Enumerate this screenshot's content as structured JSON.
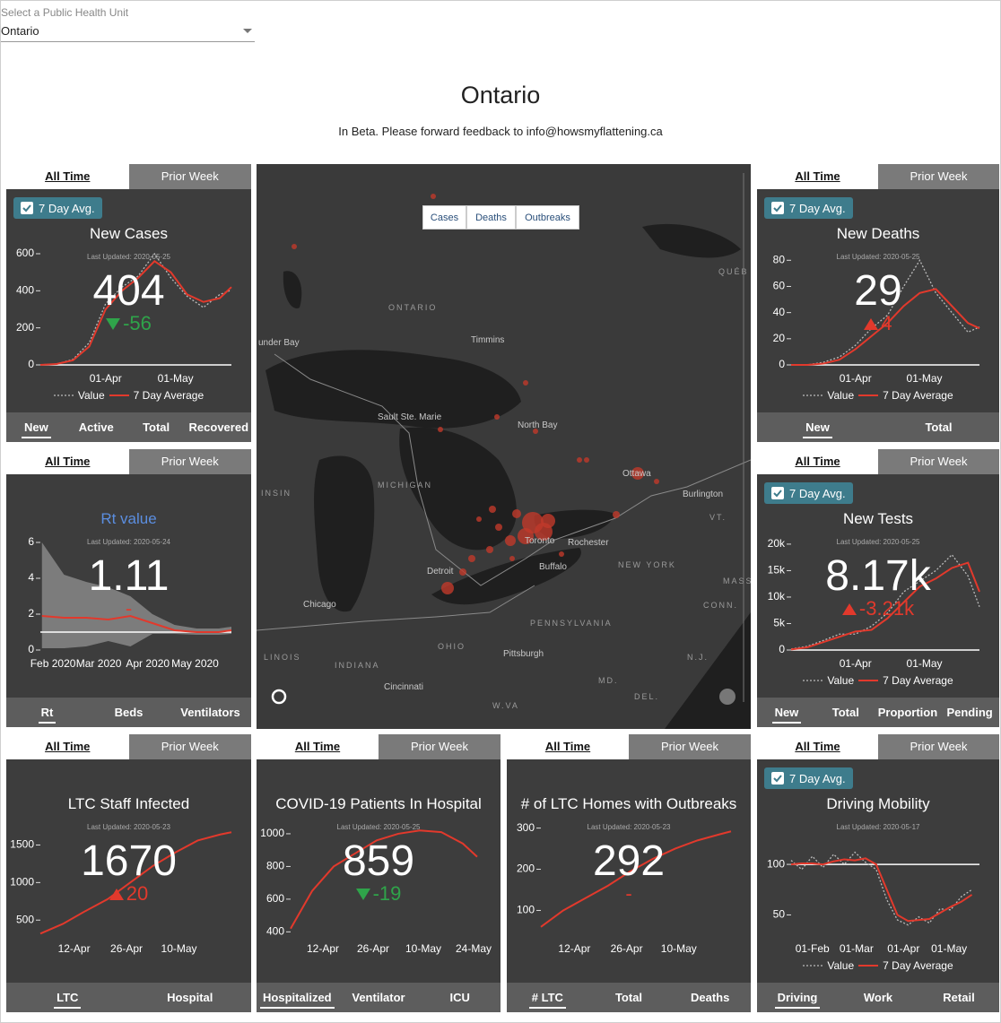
{
  "selector": {
    "label": "Select a Public Health Unit",
    "value": "Ontario"
  },
  "header": {
    "title": "Ontario",
    "subtitle": "In Beta. Please forward feedback to info@howsmyflattening.ca"
  },
  "map": {
    "layers": [
      "Cases",
      "Deaths",
      "Outbreaks"
    ],
    "places": [
      "ONTARIO",
      "QUÉB",
      "Timmins",
      "under Bay",
      "Sault Ste. Marie",
      "North Bay",
      "Ottawa",
      "Burlington",
      "VT.",
      "MICHIGAN",
      "INSIN",
      "Toronto",
      "Rochester",
      "NEW YORK",
      "MASS",
      "Buffalo",
      "Detroit",
      "Chicago",
      "CONN.",
      "PENNSYLVANIA",
      "OHIO",
      "Pittsburgh",
      "N.J.",
      "LINOIS",
      "INDIANA",
      "Cincinnati",
      "MD.",
      "DEL.",
      "W.VA"
    ]
  },
  "cards": [
    {
      "tabs": [
        "All Time",
        "Prior Week"
      ],
      "checkbox": "7 Day Avg.",
      "title": "New Cases",
      "updated": "Last Updated: 2020-05-25",
      "value": "404",
      "change": "-56",
      "trend": "down",
      "chart": {
        "type": "line",
        "xlim": [
          "2020-03-04",
          "2020-05-25"
        ],
        "ylim": [
          0,
          600
        ],
        "yticks": [
          0,
          200,
          400,
          600
        ],
        "axis_line": true,
        "xticks": [
          {
            "value": "2020-04-01",
            "label": "01-Apr"
          },
          {
            "value": "2020-05-01",
            "label": "01-May"
          }
        ],
        "x": [
          "2020-03-04",
          "2020-03-11",
          "2020-03-18",
          "2020-03-25",
          "2020-04-01",
          "2020-04-08",
          "2020-04-15",
          "2020-04-22",
          "2020-04-29",
          "2020-05-06",
          "2020-05-13",
          "2020-05-20",
          "2020-05-25"
        ],
        "series": [
          {
            "name": "Value",
            "color": "#bbbbbb",
            "dashed": true,
            "values": [
              1,
              5,
              30,
              120,
              330,
              420,
              480,
              600,
              470,
              370,
              310,
              380,
              404
            ]
          },
          {
            "name": "7 Day Average",
            "color": "#e2392c",
            "values": [
              0,
              5,
              25,
              100,
              300,
              400,
              470,
              560,
              500,
              380,
              340,
              360,
              420
            ]
          }
        ]
      },
      "bottom_tabs": [
        "New",
        "Active",
        "Total",
        "Recovered"
      ]
    },
    {
      "tabs": [
        "All Time",
        "Prior Week"
      ],
      "checkbox": "7 Day Avg.",
      "title": "New Deaths",
      "updated": "Last Updated: 2020-05-25",
      "value": "29",
      "change": "4",
      "trend": "up",
      "chart": {
        "type": "line",
        "xlim": [
          "2020-03-04",
          "2020-05-25"
        ],
        "ylim": [
          0,
          85
        ],
        "yticks": [
          0,
          20,
          40,
          60,
          80
        ],
        "axis_line": true,
        "xticks": [
          {
            "value": "2020-04-01",
            "label": "01-Apr"
          },
          {
            "value": "2020-05-01",
            "label": "01-May"
          }
        ],
        "x": [
          "2020-03-04",
          "2020-03-11",
          "2020-03-18",
          "2020-03-25",
          "2020-04-01",
          "2020-04-08",
          "2020-04-15",
          "2020-04-22",
          "2020-04-29",
          "2020-05-06",
          "2020-05-13",
          "2020-05-20",
          "2020-05-25"
        ],
        "series": [
          {
            "name": "Value",
            "color": "#bbbbbb",
            "dashed": true,
            "values": [
              0,
              0,
              2,
              6,
              15,
              28,
              38,
              60,
              80,
              55,
              40,
              25,
              29
            ]
          },
          {
            "name": "7 Day Average",
            "color": "#e2392c",
            "values": [
              0,
              0,
              1,
              4,
              12,
              22,
              32,
              45,
              55,
              58,
              45,
              32,
              28
            ]
          }
        ]
      },
      "bottom_tabs": [
        "New",
        "Total"
      ]
    },
    {
      "tabs": [
        "All Time",
        "Prior Week"
      ],
      "title": "Rt value",
      "title_color": "#5b8ee0",
      "updated": "Last Updated: 2020-05-24",
      "value": "1.11",
      "change": "-",
      "chart": {
        "type": "band",
        "xlim": [
          "2020-01-24",
          "2020-05-24"
        ],
        "ylim": [
          0,
          6.2
        ],
        "yticks": [
          0,
          2,
          4,
          6
        ],
        "reference_line": 1,
        "xticks": [
          {
            "value": "2020-02-01",
            "label": "Feb 2020"
          },
          {
            "value": "2020-03-01",
            "label": "Mar 2020"
          },
          {
            "value": "2020-04-01",
            "label": "Apr 2020"
          },
          {
            "value": "2020-05-01",
            "label": "May 2020"
          }
        ],
        "x": [
          "2020-01-25",
          "2020-02-08",
          "2020-02-22",
          "2020-03-07",
          "2020-03-21",
          "2020-04-04",
          "2020-04-18",
          "2020-05-02",
          "2020-05-16",
          "2020-05-24"
        ],
        "band": {
          "color": "#8c8c8c",
          "upper": [
            6.0,
            4.2,
            3.8,
            3.5,
            3.0,
            2.0,
            1.4,
            1.2,
            1.2,
            1.3
          ],
          "lower": [
            0.1,
            0.1,
            0.2,
            0.5,
            0.2,
            0.9,
            0.9,
            0.85,
            0.85,
            0.9
          ]
        },
        "series": [
          {
            "color": "#e2392c",
            "values": [
              1.9,
              1.8,
              1.8,
              1.7,
              1.9,
              1.5,
              1.1,
              1.0,
              1.0,
              1.1
            ]
          }
        ]
      },
      "bottom_tabs": [
        "Rt",
        "Beds",
        "Ventilators"
      ]
    },
    {
      "tabs": [
        "All Time",
        "Prior Week"
      ],
      "checkbox": "7 Day Avg.",
      "title": "New Tests",
      "updated": "Last Updated: 2020-05-25",
      "value": "8.17k",
      "change": "-3.21k",
      "trend": "up",
      "chart": {
        "type": "line",
        "xlim": [
          "2020-03-04",
          "2020-05-25"
        ],
        "ylim": [
          0,
          21000
        ],
        "axis_line": true,
        "yticks": [
          0,
          {
            "value": 5000,
            "label": "5k"
          },
          {
            "value": 10000,
            "label": "10k"
          },
          {
            "value": 15000,
            "label": "15k"
          },
          {
            "value": 20000,
            "label": "20k"
          }
        ],
        "xticks": [
          {
            "value": "2020-04-01",
            "label": "01-Apr"
          },
          {
            "value": "2020-05-01",
            "label": "01-May"
          }
        ],
        "x": [
          "2020-03-04",
          "2020-03-11",
          "2020-03-18",
          "2020-03-25",
          "2020-04-01",
          "2020-04-08",
          "2020-04-15",
          "2020-04-22",
          "2020-04-29",
          "2020-05-06",
          "2020-05-13",
          "2020-05-20",
          "2020-05-25"
        ],
        "series": [
          {
            "name": "Value",
            "color": "#bbbbbb",
            "dashed": true,
            "values": [
              200,
              700,
              1800,
              3000,
              3000,
              4500,
              7000,
              11000,
              13000,
              15000,
              18000,
              14000,
              8170
            ]
          },
          {
            "name": "7 Day Average",
            "color": "#e2392c",
            "values": [
              100,
              500,
              1500,
              2500,
              3500,
              3800,
              6000,
              9000,
              12000,
              13500,
              15500,
              16500,
              11000
            ]
          }
        ]
      },
      "bottom_tabs": [
        "New",
        "Total",
        "Proportion",
        "Pending"
      ]
    },
    {
      "tabs": [
        "All Time",
        "Prior Week"
      ],
      "title": "LTC Staff Infected",
      "updated": "Last Updated: 2020-05-23",
      "value": "1670",
      "change": "20",
      "trend": "up",
      "chart": {
        "type": "line",
        "xlim": [
          "2020-04-03",
          "2020-05-24"
        ],
        "ylim": [
          300,
          1780
        ],
        "yticks": [
          500,
          1000,
          1500
        ],
        "xticks": [
          {
            "value": "2020-04-12",
            "label": "12-Apr"
          },
          {
            "value": "2020-04-26",
            "label": "26-Apr"
          },
          {
            "value": "2020-05-10",
            "label": "10-May"
          }
        ],
        "x": [
          "2020-04-03",
          "2020-04-09",
          "2020-04-15",
          "2020-04-21",
          "2020-04-27",
          "2020-05-03",
          "2020-05-09",
          "2020-05-15",
          "2020-05-21",
          "2020-05-24"
        ],
        "series": [
          {
            "color": "#e2392c",
            "values": [
              320,
              450,
              620,
              780,
              1000,
              1220,
              1400,
              1560,
              1640,
              1670
            ]
          }
        ]
      },
      "bottom_tabs": [
        "LTC",
        "Hospital"
      ]
    },
    {
      "tabs": [
        "All Time",
        "Prior Week"
      ],
      "title": "COVID-19 Patients In Hospital",
      "updated": "Last Updated: 2020-05-25",
      "value": "859",
      "change": "-19",
      "trend": "down",
      "chart": {
        "type": "line",
        "xlim": [
          "2020-04-03",
          "2020-05-26"
        ],
        "ylim": [
          380,
          1060
        ],
        "yticks": [
          400,
          600,
          800,
          1000
        ],
        "xticks": [
          {
            "value": "2020-04-12",
            "label": "12-Apr"
          },
          {
            "value": "2020-04-26",
            "label": "26-Apr"
          },
          {
            "value": "2020-05-10",
            "label": "10-May"
          },
          {
            "value": "2020-05-24",
            "label": "24-May"
          }
        ],
        "x": [
          "2020-04-03",
          "2020-04-09",
          "2020-04-15",
          "2020-04-21",
          "2020-04-27",
          "2020-05-03",
          "2020-05-09",
          "2020-05-15",
          "2020-05-21",
          "2020-05-25"
        ],
        "series": [
          {
            "color": "#e2392c",
            "values": [
              420,
              650,
              800,
              880,
              960,
              1000,
              1020,
              1010,
              940,
              859
            ]
          }
        ]
      },
      "bottom_tabs": [
        "Hospitalized",
        "Ventilator",
        "ICU"
      ]
    },
    {
      "tabs": [
        "All Time",
        "Prior Week"
      ],
      "title": "# of LTC Homes with Outbreaks",
      "updated": "Last Updated: 2020-05-23",
      "value": "292",
      "change": "-",
      "chart": {
        "type": "line",
        "xlim": [
          "2020-04-03",
          "2020-05-24"
        ],
        "ylim": [
          40,
          310
        ],
        "yticks": [
          100,
          200,
          300
        ],
        "xticks": [
          {
            "value": "2020-04-12",
            "label": "12-Apr"
          },
          {
            "value": "2020-04-26",
            "label": "26-Apr"
          },
          {
            "value": "2020-05-10",
            "label": "10-May"
          }
        ],
        "x": [
          "2020-04-03",
          "2020-04-09",
          "2020-04-15",
          "2020-04-21",
          "2020-04-27",
          "2020-05-03",
          "2020-05-09",
          "2020-05-15",
          "2020-05-21",
          "2020-05-24"
        ],
        "series": [
          {
            "color": "#e2392c",
            "values": [
              60,
              100,
              130,
              160,
              195,
              225,
              250,
              270,
              285,
              292
            ]
          }
        ]
      },
      "bottom_tabs": [
        "# LTC",
        "Total",
        "Deaths"
      ]
    },
    {
      "tabs": [
        "All Time",
        "Prior Week"
      ],
      "checkbox": "7 Day Avg.",
      "title": "Driving Mobility",
      "updated": "Last Updated: 2020-05-17",
      "chart": {
        "type": "line",
        "xlim": [
          "2020-01-18",
          "2020-05-21"
        ],
        "ylim": [
          30,
          140
        ],
        "yticks": [
          50,
          100
        ],
        "reference_line": 100,
        "xticks": [
          {
            "value": "2020-02-01",
            "label": "01-Feb"
          },
          {
            "value": "2020-03-01",
            "label": "01-Mar"
          },
          {
            "value": "2020-04-01",
            "label": "01-Apr"
          },
          {
            "value": "2020-05-01",
            "label": "01-May"
          }
        ],
        "x": [
          "2020-01-18",
          "2020-01-25",
          "2020-02-01",
          "2020-02-08",
          "2020-02-15",
          "2020-02-22",
          "2020-02-29",
          "2020-03-07",
          "2020-03-14",
          "2020-03-21",
          "2020-03-28",
          "2020-04-04",
          "2020-04-11",
          "2020-04-18",
          "2020-04-25",
          "2020-05-02",
          "2020-05-09",
          "2020-05-16"
        ],
        "series": [
          {
            "name": "Value",
            "color": "#bbbbbb",
            "dashed": true,
            "values": [
              104,
              95,
              108,
              97,
              110,
              100,
              112,
              102,
              95,
              65,
              45,
              40,
              48,
              42,
              56,
              55,
              68,
              75
            ]
          },
          {
            "name": "7 Day Average",
            "color": "#e2392c",
            "values": [
              100,
              101,
              101,
              100,
              103,
              105,
              104,
              106,
              100,
              75,
              50,
              44,
              45,
              46,
              52,
              58,
              63,
              70
            ]
          }
        ]
      },
      "bottom_tabs": [
        "Driving",
        "Work",
        "Retail"
      ]
    }
  ]
}
